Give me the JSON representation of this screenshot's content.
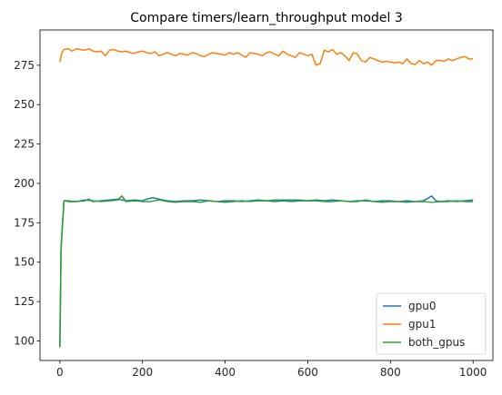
{
  "chart_data": {
    "type": "line",
    "title": "Compare timers/learn_throughput model 3",
    "xlabel": "",
    "ylabel": "",
    "xlim": [
      -48,
      1048
    ],
    "ylim": [
      87.6,
      297.4
    ],
    "xticks": [
      0,
      200,
      400,
      600,
      800,
      1000
    ],
    "yticks": [
      100,
      125,
      150,
      175,
      200,
      225,
      250,
      275
    ],
    "grid": false,
    "legend_position": "lower-right",
    "series": [
      {
        "name": "gpu0",
        "color": "#1f77b4",
        "x": [
          0,
          3,
          6,
          10,
          20,
          40,
          60,
          70,
          80,
          100,
          120,
          140,
          160,
          180,
          200,
          210,
          225,
          240,
          260,
          280,
          300,
          320,
          340,
          360,
          380,
          400,
          420,
          440,
          460,
          480,
          500,
          520,
          540,
          560,
          580,
          600,
          620,
          640,
          660,
          680,
          700,
          720,
          740,
          760,
          780,
          800,
          820,
          840,
          860,
          880,
          900,
          910,
          920,
          940,
          960,
          980,
          1000
        ],
        "y": [
          96,
          160,
          172,
          189,
          189,
          188.5,
          189,
          190,
          188.5,
          189,
          189.5,
          190,
          189,
          189.5,
          189,
          190,
          191,
          190,
          189,
          188.5,
          189,
          189,
          189.5,
          189,
          188.5,
          189,
          189,
          188.5,
          189,
          189.5,
          189,
          188.5,
          189,
          188.5,
          189,
          189,
          189.5,
          189,
          189.5,
          189,
          188.5,
          189,
          189,
          188.5,
          189,
          189,
          188.5,
          189,
          188.5,
          189,
          192,
          189,
          188.5,
          189,
          188.5,
          189,
          189.5
        ]
      },
      {
        "name": "gpu1",
        "color": "#ff7f0e",
        "x": [
          0,
          5,
          10,
          20,
          30,
          40,
          50,
          60,
          70,
          80,
          90,
          100,
          110,
          120,
          130,
          140,
          150,
          160,
          170,
          180,
          190,
          200,
          210,
          220,
          230,
          240,
          250,
          260,
          270,
          280,
          290,
          300,
          310,
          320,
          330,
          340,
          350,
          360,
          370,
          380,
          390,
          400,
          410,
          420,
          430,
          440,
          450,
          460,
          470,
          480,
          490,
          500,
          510,
          520,
          530,
          540,
          550,
          560,
          570,
          580,
          590,
          600,
          610,
          620,
          630,
          640,
          650,
          660,
          670,
          680,
          690,
          700,
          710,
          720,
          730,
          740,
          750,
          760,
          770,
          780,
          790,
          800,
          810,
          820,
          830,
          840,
          850,
          860,
          870,
          880,
          890,
          900,
          910,
          920,
          930,
          940,
          950,
          960,
          970,
          980,
          990,
          1000
        ],
        "y": [
          277,
          283,
          285,
          285.5,
          284,
          285.5,
          285,
          284.5,
          285.5,
          284,
          283.5,
          284,
          281,
          284.5,
          285,
          284,
          283.5,
          284,
          283,
          282.5,
          283.5,
          284,
          283,
          282.5,
          283.5,
          281,
          282,
          283,
          282,
          281,
          282.5,
          282,
          281.5,
          283,
          282.5,
          281,
          280.5,
          282,
          283,
          282.5,
          282,
          281.5,
          283,
          282,
          283,
          281.5,
          280,
          283,
          282.5,
          282,
          281,
          283,
          283.5,
          282,
          281,
          284,
          282,
          281,
          280,
          283,
          282,
          281,
          282,
          275,
          276,
          284.5,
          283.5,
          285,
          282,
          283,
          281,
          278,
          283,
          282,
          278,
          277,
          280,
          279,
          278,
          277,
          277.5,
          277,
          276.5,
          277,
          276,
          279,
          276,
          275.5,
          278,
          276,
          277,
          275,
          278,
          278,
          277.5,
          279,
          278,
          279,
          280,
          280.5,
          279,
          279
        ]
      },
      {
        "name": "both_gpus",
        "color": "#2ca02c",
        "x": [
          0,
          3,
          6,
          10,
          20,
          40,
          60,
          80,
          100,
          120,
          140,
          150,
          160,
          180,
          200,
          220,
          240,
          260,
          280,
          300,
          320,
          340,
          360,
          380,
          400,
          420,
          440,
          460,
          480,
          500,
          520,
          540,
          560,
          580,
          600,
          620,
          640,
          660,
          680,
          700,
          720,
          740,
          760,
          780,
          800,
          820,
          840,
          860,
          880,
          900,
          920,
          940,
          960,
          980,
          1000
        ],
        "y": [
          96,
          158,
          173,
          189,
          188.5,
          188.5,
          189.5,
          189,
          188.5,
          189,
          189.5,
          192,
          188.5,
          189,
          188.5,
          188.5,
          189.5,
          188.5,
          188,
          188.5,
          188.5,
          188,
          189,
          188.5,
          188,
          188.5,
          189,
          188.5,
          189,
          189,
          189.5,
          189.5,
          189.5,
          189.5,
          189,
          189,
          188.5,
          188.5,
          189,
          188.5,
          188.5,
          189.5,
          188.5,
          188,
          188.5,
          188.5,
          188,
          188.5,
          188.5,
          188,
          188.5,
          188.5,
          189,
          188.5,
          188.5
        ]
      }
    ]
  }
}
